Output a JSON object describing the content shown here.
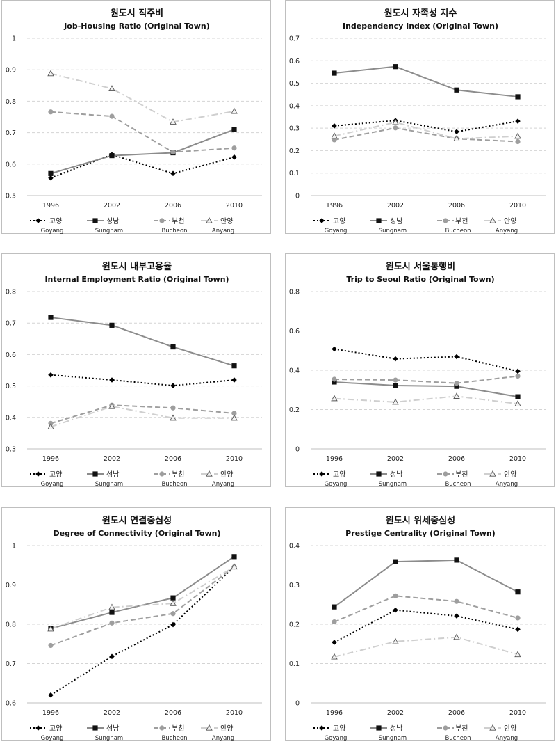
{
  "legend": [
    {
      "ko": "고양",
      "en": "Goyang",
      "color": "#000000",
      "dash": "2,3",
      "marker": "diamond",
      "width": 2
    },
    {
      "ko": "성남",
      "en": "Sungnam",
      "color": "#8c8c8c",
      "dash": "",
      "marker": "square",
      "width": 2
    },
    {
      "ko": "부천",
      "en": "Bucheon",
      "color": "#9e9e9e",
      "dash": "7,4",
      "marker": "circle",
      "width": 2
    },
    {
      "ko": "안양",
      "en": "Anyang",
      "color": "#cfcfcf",
      "dash": "9,4,2,4",
      "marker": "triangle",
      "width": 2
    }
  ],
  "chart_data": [
    {
      "type": "line",
      "title_ko": "원도시 직주비",
      "title_en": "Job-Housing Ratio (Original Town)",
      "categories": [
        "1996",
        "2002",
        "2006",
        "2010"
      ],
      "ylim": [
        0.5,
        1
      ],
      "yticks": [
        "0.5",
        "0.6",
        "0.7",
        "0.8",
        "0.9",
        "1"
      ],
      "grid": true,
      "series": [
        {
          "name": "고양",
          "values": [
            0.556,
            0.63,
            0.57,
            0.622
          ]
        },
        {
          "name": "성남",
          "values": [
            0.57,
            0.627,
            0.636,
            0.71
          ]
        },
        {
          "name": "부천",
          "values": [
            0.766,
            0.752,
            0.638,
            0.651
          ]
        },
        {
          "name": "안양",
          "values": [
            0.888,
            0.84,
            0.734,
            0.768
          ]
        }
      ]
    },
    {
      "type": "line",
      "title_ko": "원도시 자족성 지수",
      "title_en": "Independency Index (Original Town)",
      "categories": [
        "1996",
        "2002",
        "2006",
        "2010"
      ],
      "ylim": [
        0,
        0.7
      ],
      "yticks": [
        "0",
        "0.1",
        "0.2",
        "0.3",
        "0.4",
        "0.5",
        "0.6",
        "0.7"
      ],
      "grid": true,
      "series": [
        {
          "name": "고양",
          "values": [
            0.31,
            0.334,
            0.284,
            0.331
          ]
        },
        {
          "name": "성남",
          "values": [
            0.545,
            0.574,
            0.47,
            0.44
          ]
        },
        {
          "name": "부천",
          "values": [
            0.248,
            0.301,
            0.253,
            0.24
          ]
        },
        {
          "name": "안양",
          "values": [
            0.265,
            0.326,
            0.253,
            0.264
          ]
        }
      ]
    },
    {
      "type": "line",
      "title_ko": "원도시 내부고용율",
      "title_en": "Internal Employment Ratio (Original Town)",
      "categories": [
        "1996",
        "2002",
        "2006",
        "2010"
      ],
      "ylim": [
        0.3,
        0.8
      ],
      "yticks": [
        "0.3",
        "0.4",
        "0.5",
        "0.6",
        "0.7",
        "0.8"
      ],
      "grid": true,
      "series": [
        {
          "name": "고양",
          "values": [
            0.535,
            0.519,
            0.501,
            0.519
          ]
        },
        {
          "name": "성남",
          "values": [
            0.718,
            0.693,
            0.624,
            0.564
          ]
        },
        {
          "name": "부천",
          "values": [
            0.381,
            0.439,
            0.43,
            0.413
          ]
        },
        {
          "name": "안양",
          "values": [
            0.37,
            0.435,
            0.398,
            0.398
          ]
        }
      ]
    },
    {
      "type": "line",
      "title_ko": "원도시 서울통행비",
      "title_en": "Trip to Seoul Ratio (Original Town)",
      "categories": [
        "1996",
        "2002",
        "2006",
        "2010"
      ],
      "ylim": [
        0,
        0.8
      ],
      "yticks": [
        "0",
        "0.2",
        "0.4",
        "0.6",
        "0.8"
      ],
      "grid": true,
      "series": [
        {
          "name": "고양",
          "values": [
            0.508,
            0.458,
            0.469,
            0.395
          ]
        },
        {
          "name": "성남",
          "values": [
            0.34,
            0.322,
            0.318,
            0.265
          ]
        },
        {
          "name": "부천",
          "values": [
            0.354,
            0.35,
            0.334,
            0.37
          ]
        },
        {
          "name": "안양",
          "values": [
            0.256,
            0.238,
            0.268,
            0.229
          ]
        }
      ]
    },
    {
      "type": "line",
      "title_ko": "원도시 연결중심성",
      "title_en": "Degree of Connectivity (Original Town)",
      "categories": [
        "1996",
        "2002",
        "2006",
        "2010"
      ],
      "ylim": [
        0.6,
        1
      ],
      "yticks": [
        "0.6",
        "0.7",
        "0.8",
        "0.9",
        "1"
      ],
      "grid": true,
      "series": [
        {
          "name": "고양",
          "values": [
            0.62,
            0.718,
            0.799,
            0.946
          ]
        },
        {
          "name": "성남",
          "values": [
            0.789,
            0.83,
            0.867,
            0.972
          ]
        },
        {
          "name": "부천",
          "values": [
            0.746,
            0.803,
            0.827,
            0.946
          ]
        },
        {
          "name": "안양",
          "values": [
            0.788,
            0.843,
            0.853,
            0.946
          ]
        }
      ]
    },
    {
      "type": "line",
      "title_ko": "원도시 위세중심성",
      "title_en": "Prestige Centrality (Original Town)",
      "categories": [
        "1996",
        "2002",
        "2006",
        "2010"
      ],
      "ylim": [
        0,
        0.4
      ],
      "yticks": [
        "0",
        "0.1",
        "0.2",
        "0.3",
        "0.4"
      ],
      "grid": true,
      "series": [
        {
          "name": "고양",
          "values": [
            0.154,
            0.236,
            0.221,
            0.187
          ]
        },
        {
          "name": "성남",
          "values": [
            0.244,
            0.359,
            0.363,
            0.282
          ]
        },
        {
          "name": "부천",
          "values": [
            0.206,
            0.272,
            0.258,
            0.216
          ]
        },
        {
          "name": "안양",
          "values": [
            0.117,
            0.156,
            0.167,
            0.123
          ]
        }
      ]
    }
  ]
}
